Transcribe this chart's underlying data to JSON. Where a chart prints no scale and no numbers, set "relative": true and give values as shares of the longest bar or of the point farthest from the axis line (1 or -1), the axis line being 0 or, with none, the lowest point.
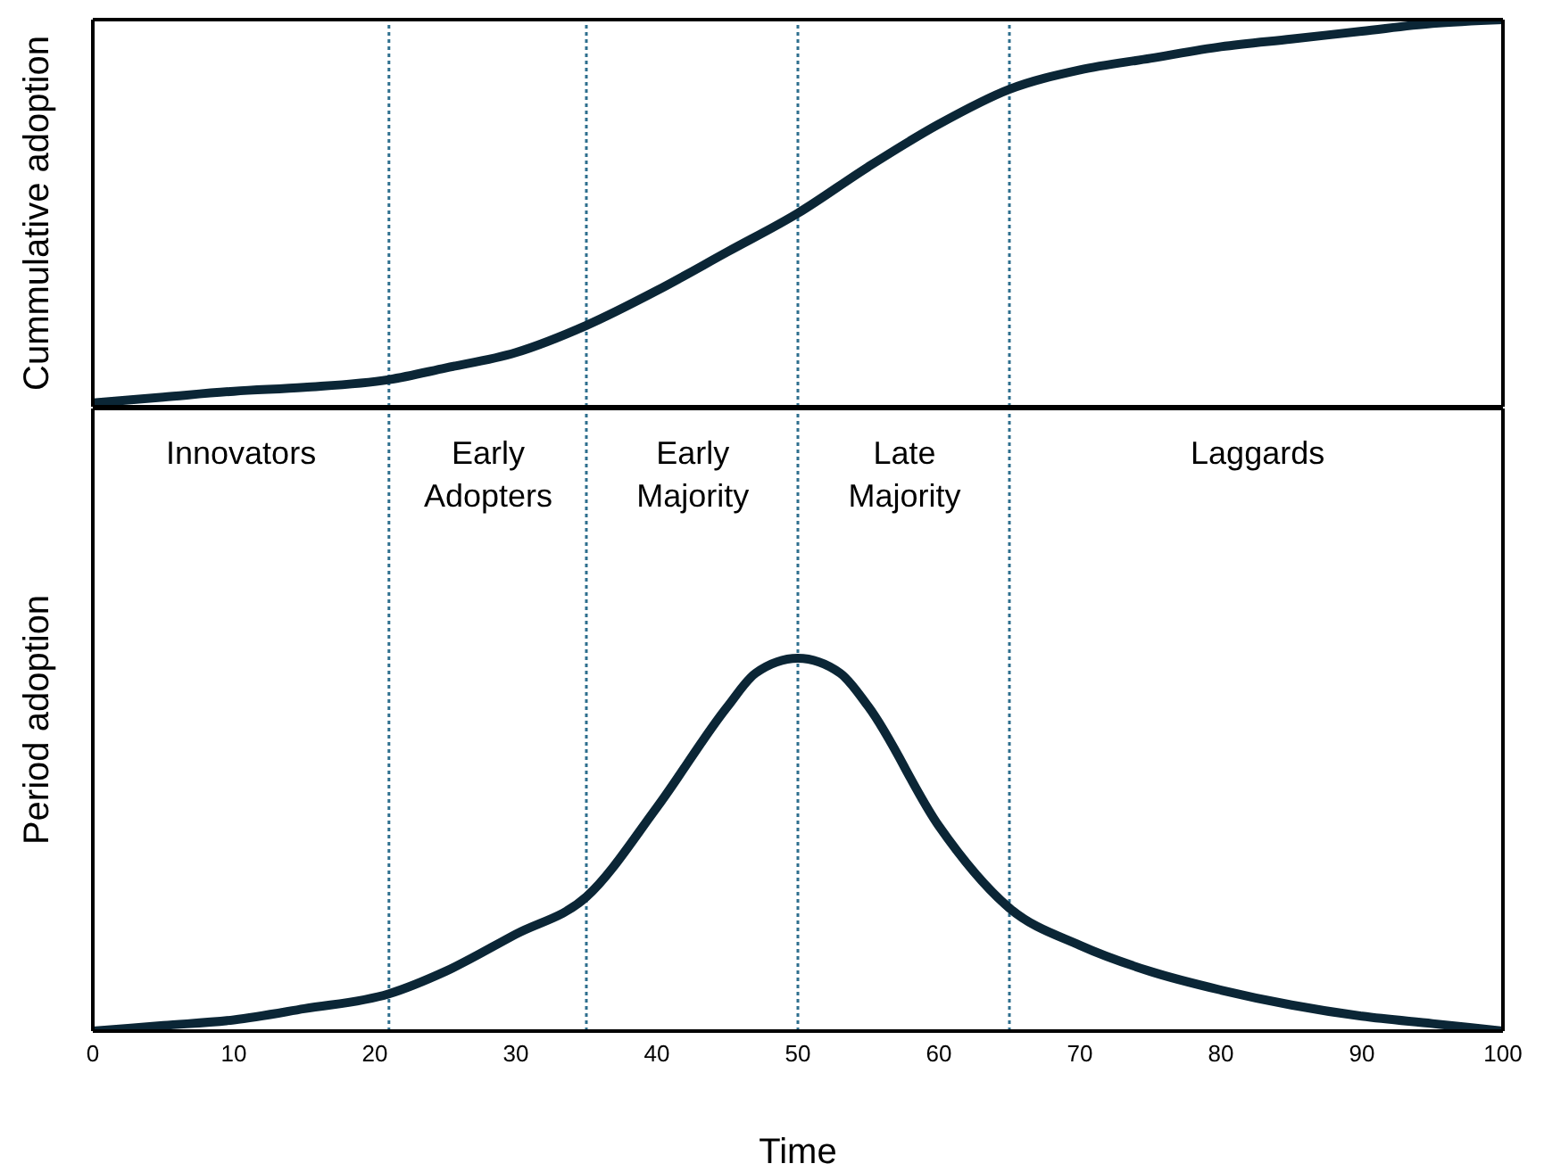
{
  "chart_data": [
    {
      "type": "line",
      "ylabel": "Cummulative adoption",
      "relative": true,
      "tick_labels": false,
      "xlim": [
        0,
        100
      ],
      "line_style": "solid",
      "marker": "none",
      "grid": false,
      "legend": false,
      "series": [
        {
          "color": "#0b2636",
          "x": [
            0,
            5,
            10,
            15,
            21,
            25,
            30,
            35,
            40,
            45,
            50,
            55,
            60,
            65,
            70,
            75,
            80,
            85,
            90,
            95,
            100
          ],
          "values": [
            0.01,
            0.025,
            0.04,
            0.05,
            0.07,
            0.1,
            0.14,
            0.21,
            0.3,
            0.4,
            0.5,
            0.62,
            0.73,
            0.82,
            0.87,
            0.9,
            0.93,
            0.95,
            0.97,
            0.99,
            1
          ]
        }
      ],
      "ref_lines": [
        {
          "axis": "x",
          "value": 21,
          "color": "#2e6f8e",
          "line_style": "dotted"
        },
        {
          "axis": "x",
          "value": 35,
          "color": "#2e6f8e",
          "line_style": "dotted"
        },
        {
          "axis": "x",
          "value": 50,
          "color": "#2e6f8e",
          "line_style": "dotted"
        },
        {
          "axis": "x",
          "value": 65,
          "color": "#2e6f8e",
          "line_style": "dotted"
        }
      ]
    },
    {
      "type": "line",
      "ylabel": "Period adoption",
      "xlabel": "Time",
      "relative": true,
      "tick_labels": "x",
      "xlim": [
        0,
        100
      ],
      "xticks": [
        0,
        10,
        20,
        30,
        40,
        50,
        60,
        70,
        80,
        90,
        100
      ],
      "line_style": "solid",
      "marker": "none",
      "grid": false,
      "legend": false,
      "series": [
        {
          "color": "#0b2636",
          "x": [
            0,
            5,
            10,
            15,
            21,
            25,
            30,
            35,
            40,
            45,
            47,
            50,
            53,
            55,
            60,
            65,
            70,
            75,
            80,
            85,
            90,
            95,
            100
          ],
          "values": [
            0,
            0.015,
            0.03,
            0.06,
            0.1,
            0.16,
            0.26,
            0.36,
            0.6,
            0.87,
            0.96,
            1,
            0.96,
            0.87,
            0.55,
            0.33,
            0.23,
            0.16,
            0.11,
            0.07,
            0.04,
            0.02,
            0
          ]
        }
      ],
      "ref_lines": [
        {
          "axis": "x",
          "value": 21,
          "color": "#2e6f8e",
          "line_style": "dotted"
        },
        {
          "axis": "x",
          "value": 35,
          "color": "#2e6f8e",
          "line_style": "dotted"
        },
        {
          "axis": "x",
          "value": 50,
          "color": "#2e6f8e",
          "line_style": "dotted"
        },
        {
          "axis": "x",
          "value": 65,
          "color": "#2e6f8e",
          "line_style": "dotted"
        }
      ],
      "annotations": [
        "Innovators",
        "Early Adopters",
        "Early Majority",
        "Late Majority",
        "Laggards"
      ]
    }
  ]
}
